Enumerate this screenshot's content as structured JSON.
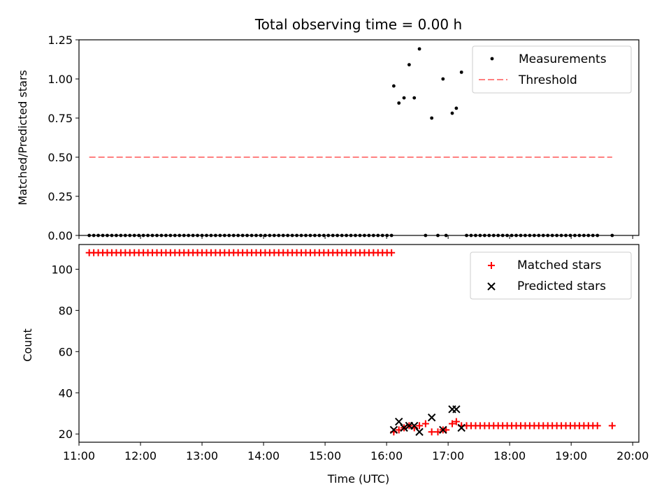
{
  "title": "Total observing time = 0.00 h",
  "colors": {
    "measurement": "#000000",
    "threshold": "#ff8080",
    "matched": "#ff0000",
    "predicted": "#000000"
  },
  "chart_data": [
    {
      "type": "scatter",
      "ylabel": "Matched/Predicted stars",
      "ylim": [
        0,
        1.25
      ],
      "yticks": [
        "0.00",
        "0.25",
        "0.50",
        "0.75",
        "1.00",
        "1.25"
      ],
      "xlim": [
        "11:00",
        "20:06"
      ],
      "legend": {
        "position": "top-right",
        "entries": [
          "Measurements",
          "Threshold"
        ]
      },
      "series": [
        {
          "name": "Measurements",
          "marker": "dot",
          "zero_run_ranges": [
            [
              "11:10",
              "16:05"
            ],
            [
              "16:38",
              "16:38"
            ],
            [
              "16:50",
              "16:50"
            ],
            [
              "16:58",
              "16:58"
            ],
            [
              "17:18",
              "19:28"
            ],
            [
              "19:40",
              "19:40"
            ]
          ],
          "zero_step_minutes": 4.4,
          "points": [
            {
              "x": "16:07",
              "y": 0.955
            },
            {
              "x": "16:12",
              "y": 0.846
            },
            {
              "x": "16:17",
              "y": 0.879
            },
            {
              "x": "16:22",
              "y": 1.091
            },
            {
              "x": "16:27",
              "y": 0.879
            },
            {
              "x": "16:32",
              "y": 1.192
            },
            {
              "x": "16:44",
              "y": 0.75
            },
            {
              "x": "16:55",
              "y": 1.0
            },
            {
              "x": "17:04",
              "y": 0.781
            },
            {
              "x": "17:08",
              "y": 0.813
            },
            {
              "x": "17:13",
              "y": 1.043
            }
          ]
        },
        {
          "name": "Threshold",
          "style": "dashed",
          "x": [
            "11:10",
            "19:40"
          ],
          "y": 0.5
        }
      ]
    },
    {
      "type": "scatter",
      "xlabel": "Time (UTC)",
      "ylabel": "Count",
      "ylim": [
        16,
        112
      ],
      "yticks": [
        "20",
        "40",
        "60",
        "80",
        "100"
      ],
      "xticks": [
        "11:00",
        "12:00",
        "13:00",
        "14:00",
        "15:00",
        "16:00",
        "17:00",
        "18:00",
        "19:00",
        "20:00"
      ],
      "legend": {
        "position": "top-right",
        "entries": [
          "Matched stars",
          "Predicted stars"
        ]
      },
      "series": [
        {
          "name": "Matched stars",
          "marker": "plus",
          "runs": [
            {
              "from": "11:10",
              "to": "16:05",
              "y": 108
            },
            {
              "from": "17:18",
              "to": "19:28",
              "y": 24
            }
          ],
          "step_minutes": 4.4,
          "points": [
            {
              "x": "16:07",
              "y": 21
            },
            {
              "x": "16:12",
              "y": 22
            },
            {
              "x": "16:17",
              "y": 23
            },
            {
              "x": "16:22",
              "y": 24
            },
            {
              "x": "16:27",
              "y": 23
            },
            {
              "x": "16:32",
              "y": 24
            },
            {
              "x": "16:38",
              "y": 25
            },
            {
              "x": "16:44",
              "y": 21
            },
            {
              "x": "16:50",
              "y": 21
            },
            {
              "x": "16:55",
              "y": 22
            },
            {
              "x": "16:58",
              "y": 22
            },
            {
              "x": "17:04",
              "y": 25
            },
            {
              "x": "17:08",
              "y": 26
            },
            {
              "x": "17:13",
              "y": 24
            },
            {
              "x": "19:40",
              "y": 24
            }
          ]
        },
        {
          "name": "Predicted stars",
          "marker": "x",
          "points": [
            {
              "x": "16:07",
              "y": 22
            },
            {
              "x": "16:12",
              "y": 26
            },
            {
              "x": "16:17",
              "y": 23
            },
            {
              "x": "16:22",
              "y": 24
            },
            {
              "x": "16:27",
              "y": 24
            },
            {
              "x": "16:32",
              "y": 21
            },
            {
              "x": "16:44",
              "y": 28
            },
            {
              "x": "16:55",
              "y": 22
            },
            {
              "x": "17:04",
              "y": 32
            },
            {
              "x": "17:08",
              "y": 32
            },
            {
              "x": "17:13",
              "y": 23
            }
          ]
        }
      ]
    }
  ]
}
